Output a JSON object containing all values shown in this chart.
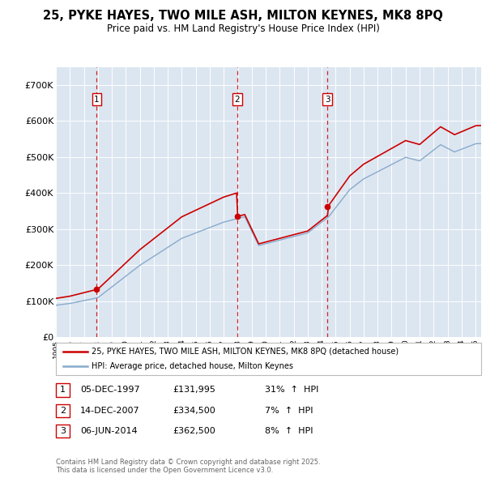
{
  "title": "25, PYKE HAYES, TWO MILE ASH, MILTON KEYNES, MK8 8PQ",
  "subtitle": "Price paid vs. HM Land Registry's House Price Index (HPI)",
  "legend_line1": "25, PYKE HAYES, TWO MILE ASH, MILTON KEYNES, MK8 8PQ (detached house)",
  "legend_line2": "HPI: Average price, detached house, Milton Keynes",
  "transactions": [
    {
      "num": 1,
      "date": "05-DEC-1997",
      "price": 131995,
      "pct": "31%",
      "dir": "↑"
    },
    {
      "num": 2,
      "date": "14-DEC-2007",
      "price": 334500,
      "pct": "7%",
      "dir": "↑"
    },
    {
      "num": 3,
      "date": "06-JUN-2014",
      "price": 362500,
      "pct": "8%",
      "dir": "↑"
    }
  ],
  "footnote": "Contains HM Land Registry data © Crown copyright and database right 2025.\nThis data is licensed under the Open Government Licence v3.0.",
  "ylim": [
    0,
    750000
  ],
  "yticks": [
    0,
    100000,
    200000,
    300000,
    400000,
    500000,
    600000,
    700000
  ],
  "ytick_labels": [
    "£0",
    "£100K",
    "£200K",
    "£300K",
    "£400K",
    "£500K",
    "£600K",
    "£700K"
  ],
  "property_color": "#cc0000",
  "hpi_color": "#88aacc",
  "vline_color": "#cc0000",
  "plot_bg": "#dce6f1",
  "grid_color": "#ffffff",
  "box_color": "#cc0000",
  "fig_bg": "#ffffff",
  "t1_year": 1997.92,
  "t2_year": 2007.95,
  "t3_year": 2014.42,
  "p1": 131995,
  "p2": 334500,
  "p3": 362500
}
